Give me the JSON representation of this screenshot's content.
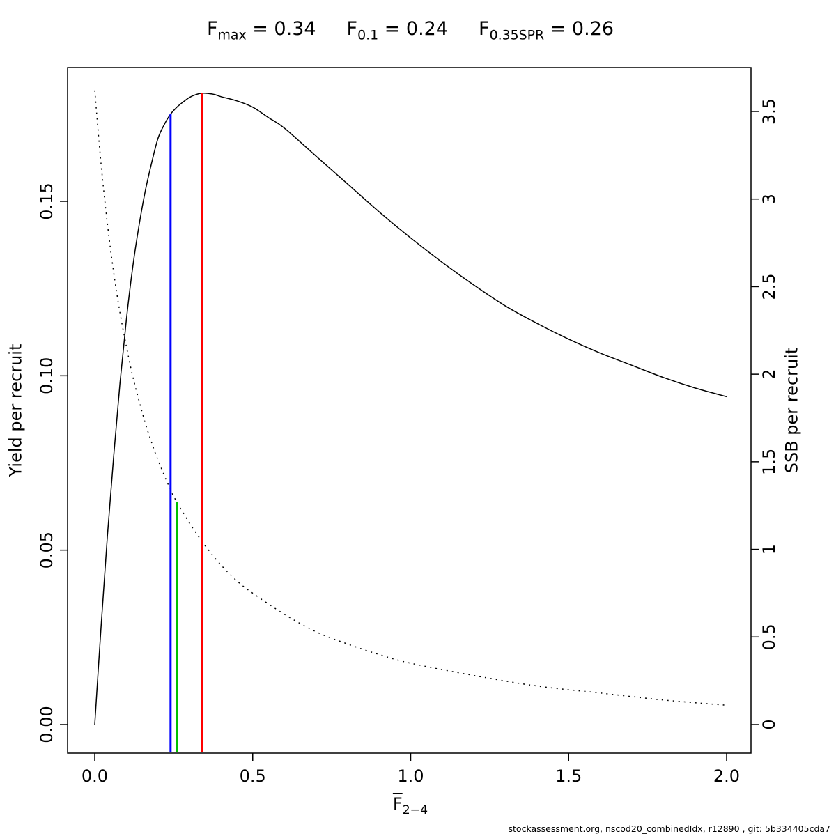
{
  "footer": {
    "text": "stockassessment.org, nscod20_combinedIdx, r12890 , git: 5b334405cda7"
  },
  "chart_data": {
    "type": "line",
    "title_annotations": [
      {
        "base": "F",
        "sub": "max",
        "rest": " = 0.34"
      },
      {
        "base": "F",
        "sub": "0.1",
        "rest": " = 0.24"
      },
      {
        "base": "F",
        "sub": "0.35SPR",
        "rest": " = 0.26"
      }
    ],
    "x_axis": {
      "label_base": "F",
      "label_sub": "2−4",
      "range": [
        0,
        2
      ],
      "ticks": [
        0,
        0.5,
        1,
        1.5,
        2
      ],
      "tick_labels": [
        "0.0",
        "0.5",
        "1.0",
        "1.5",
        "2.0"
      ]
    },
    "y_left": {
      "label": "Yield per recruit",
      "range": [
        0,
        0.188
      ],
      "ticks": [
        0,
        0.05,
        0.1,
        0.15
      ],
      "tick_labels": [
        "0.00",
        "0.05",
        "0.10",
        "0.15"
      ]
    },
    "y_right": {
      "label": "SSB per recruit",
      "range": [
        0,
        3.75
      ],
      "ticks": [
        0,
        0.5,
        1,
        1.5,
        2,
        2.5,
        3,
        3.5
      ],
      "tick_labels": [
        "0",
        "0.5",
        "1",
        "1.5",
        "2",
        "2.5",
        "3",
        "3.5"
      ]
    },
    "series": [
      {
        "name": "yield-per-recruit",
        "axis": "left",
        "line_style": "solid",
        "color": "#000000",
        "x": [
          0,
          0.02,
          0.04,
          0.06,
          0.08,
          0.1,
          0.12,
          0.14,
          0.16,
          0.18,
          0.2,
          0.22,
          0.24,
          0.26,
          0.28,
          0.3,
          0.32,
          0.34,
          0.36,
          0.38,
          0.4,
          0.45,
          0.5,
          0.55,
          0.6,
          0.7,
          0.8,
          0.9,
          1.0,
          1.1,
          1.2,
          1.3,
          1.4,
          1.5,
          1.6,
          1.7,
          1.8,
          1.9,
          2.0
        ],
        "y": [
          0,
          0.028,
          0.054,
          0.077,
          0.098,
          0.116,
          0.131,
          0.143,
          0.153,
          0.161,
          0.168,
          0.172,
          0.175,
          0.177,
          0.1785,
          0.1798,
          0.1806,
          0.181,
          0.1809,
          0.1806,
          0.18,
          0.1788,
          0.177,
          0.174,
          0.171,
          0.163,
          0.155,
          0.147,
          0.1395,
          0.1325,
          0.126,
          0.12,
          0.115,
          0.1105,
          0.1065,
          0.103,
          0.0995,
          0.0965,
          0.094
        ]
      },
      {
        "name": "ssb-per-recruit",
        "axis": "right",
        "line_style": "dotted",
        "color": "#000000",
        "x": [
          0,
          0.02,
          0.04,
          0.06,
          0.08,
          0.1,
          0.12,
          0.14,
          0.16,
          0.18,
          0.2,
          0.24,
          0.26,
          0.3,
          0.35,
          0.4,
          0.45,
          0.5,
          0.6,
          0.7,
          0.8,
          0.9,
          1.0,
          1.2,
          1.4,
          1.6,
          1.8,
          2.0
        ],
        "y": [
          3.62,
          3.2,
          2.86,
          2.58,
          2.35,
          2.16,
          1.99,
          1.85,
          1.72,
          1.61,
          1.51,
          1.34,
          1.27,
          1.15,
          1.02,
          0.91,
          0.82,
          0.75,
          0.63,
          0.53,
          0.46,
          0.4,
          0.35,
          0.28,
          0.22,
          0.18,
          0.14,
          0.11
        ]
      }
    ],
    "reference_lines": [
      {
        "name": "F0.1",
        "x": 0.24,
        "color": "#0000ff",
        "top_axis": "left",
        "top_value": 0.175
      },
      {
        "name": "F0.35SPR",
        "x": 0.26,
        "color": "#00c000",
        "top_axis": "right",
        "top_value": 1.27
      },
      {
        "name": "Fmax",
        "x": 0.34,
        "color": "#ff0000",
        "top_axis": "left",
        "top_value": 0.181
      }
    ],
    "grid": false,
    "legend": "none"
  }
}
